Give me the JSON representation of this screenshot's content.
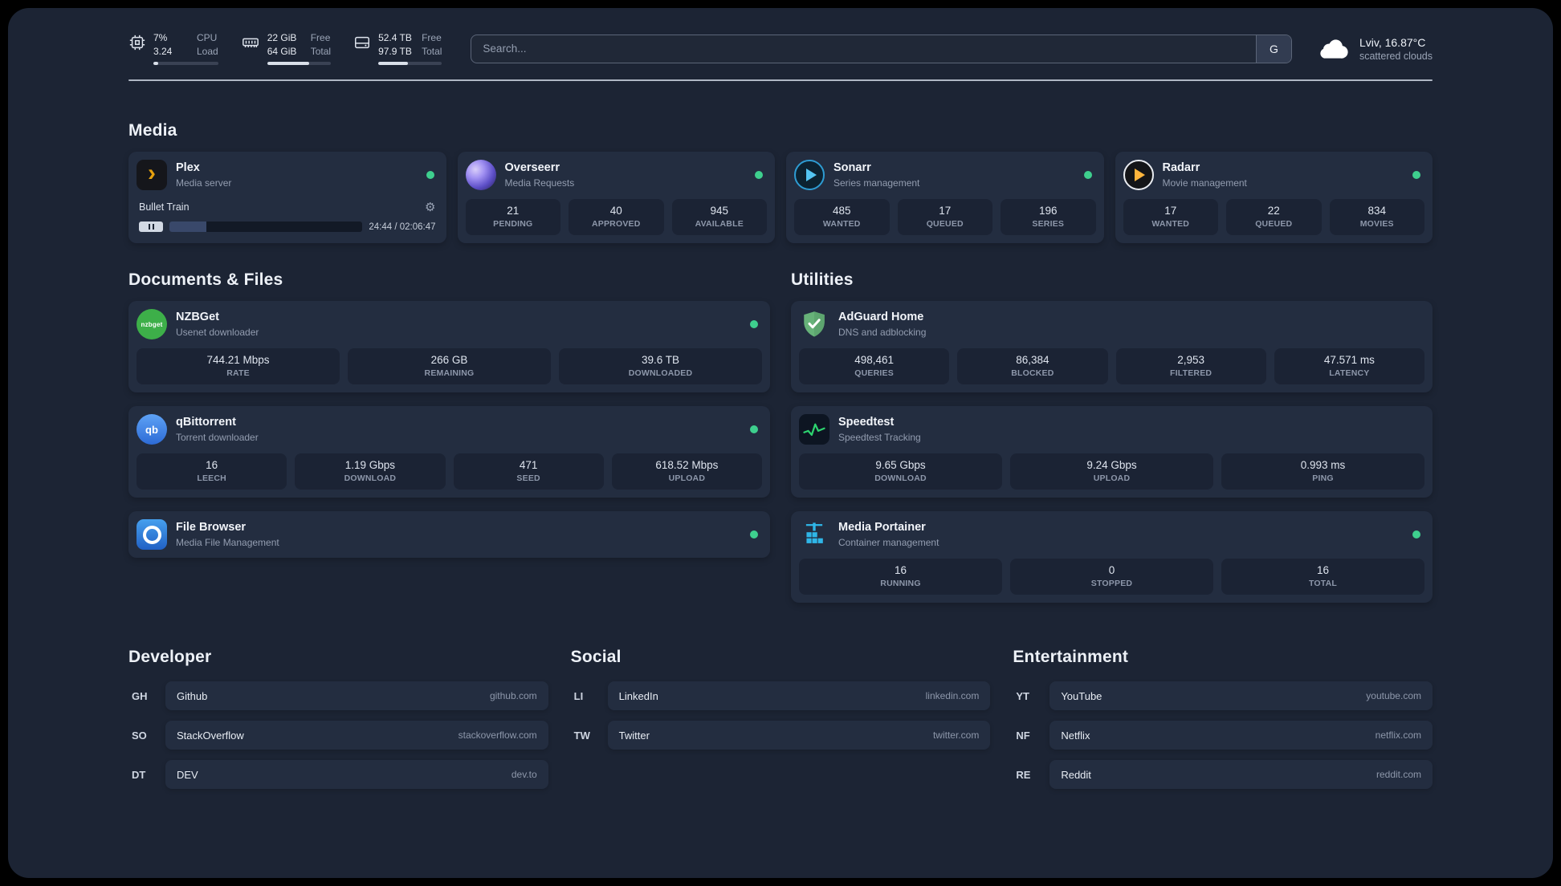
{
  "colors": {
    "background": "#1c2434",
    "card": "#232d40",
    "stat_block": "#1b2334",
    "online_dot": "#3ecf8e",
    "plex_accent": "#e5a00d",
    "adguard_green": "#67b279",
    "speedtest_green": "#2dd36f",
    "portainer_blue": "#2fb6e8"
  },
  "topbar": {
    "cpu": {
      "icon": "cpu-chip",
      "value": "7%",
      "load": "3.24",
      "label_value": "CPU",
      "label_load": "Load",
      "bar_percent": 7
    },
    "memory": {
      "icon": "memory-module",
      "free": "22 GiB",
      "total": "64 GiB",
      "label_free": "Free",
      "label_total": "Total",
      "bar_percent": 66
    },
    "disk": {
      "icon": "hard-disk",
      "free": "52.4 TB",
      "total": "97.9 TB",
      "label_free": "Free",
      "label_total": "Total",
      "bar_percent": 46
    },
    "search": {
      "placeholder": "Search...",
      "button_label": "G"
    },
    "weather": {
      "icon": "cloud",
      "location": "Lviv, 16.87°C",
      "condition": "scattered clouds"
    }
  },
  "media": {
    "title": "Media",
    "plex": {
      "icon": "plex-chevron",
      "name": "Plex",
      "subtitle": "Media server",
      "now_playing": "Bullet Train",
      "time": "24:44 / 02:06:47",
      "progress_percent": 19
    },
    "overseerr": {
      "icon": "overseerr-swirl",
      "name": "Overseerr",
      "subtitle": "Media Requests",
      "stats": [
        {
          "value": "21",
          "label": "PENDING"
        },
        {
          "value": "40",
          "label": "APPROVED"
        },
        {
          "value": "945",
          "label": "AVAILABLE"
        }
      ]
    },
    "sonarr": {
      "icon": "sonarr-arrow",
      "name": "Sonarr",
      "subtitle": "Series management",
      "stats": [
        {
          "value": "485",
          "label": "WANTED"
        },
        {
          "value": "17",
          "label": "QUEUED"
        },
        {
          "value": "196",
          "label": "SERIES"
        }
      ]
    },
    "radarr": {
      "icon": "radarr-arrow",
      "name": "Radarr",
      "subtitle": "Movie management",
      "stats": [
        {
          "value": "17",
          "label": "WANTED"
        },
        {
          "value": "22",
          "label": "QUEUED"
        },
        {
          "value": "834",
          "label": "MOVIES"
        }
      ]
    }
  },
  "documents": {
    "title": "Documents & Files",
    "nzbget": {
      "icon": "nzbget-logo",
      "name": "NZBGet",
      "subtitle": "Usenet downloader",
      "stats": [
        {
          "value": "744.21 Mbps",
          "label": "RATE"
        },
        {
          "value": "266 GB",
          "label": "REMAINING"
        },
        {
          "value": "39.6 TB",
          "label": "DOWNLOADED"
        }
      ]
    },
    "qbittorrent": {
      "icon": "qbittorrent-logo",
      "name": "qBittorrent",
      "subtitle": "Torrent downloader",
      "stats": [
        {
          "value": "16",
          "label": "LEECH"
        },
        {
          "value": "1.19 Gbps",
          "label": "DOWNLOAD"
        },
        {
          "value": "471",
          "label": "SEED"
        },
        {
          "value": "618.52 Mbps",
          "label": "UPLOAD"
        }
      ]
    },
    "filebrowser": {
      "icon": "filebrowser-logo",
      "name": "File Browser",
      "subtitle": "Media File Management"
    }
  },
  "utilities": {
    "title": "Utilities",
    "adguard": {
      "icon": "adguard-shield",
      "name": "AdGuard Home",
      "subtitle": "DNS and adblocking",
      "stats": [
        {
          "value": "498,461",
          "label": "QUERIES"
        },
        {
          "value": "86,384",
          "label": "BLOCKED"
        },
        {
          "value": "2,953",
          "label": "FILTERED"
        },
        {
          "value": "47.571 ms",
          "label": "LATENCY"
        }
      ]
    },
    "speedtest": {
      "icon": "speedtest-graph",
      "name": "Speedtest",
      "subtitle": "Speedtest Tracking",
      "stats": [
        {
          "value": "9.65 Gbps",
          "label": "DOWNLOAD"
        },
        {
          "value": "9.24 Gbps",
          "label": "UPLOAD"
        },
        {
          "value": "0.993 ms",
          "label": "PING"
        }
      ]
    },
    "portainer": {
      "icon": "portainer-crane",
      "name": "Media Portainer",
      "subtitle": "Container management",
      "stats": [
        {
          "value": "16",
          "label": "RUNNING"
        },
        {
          "value": "0",
          "label": "STOPPED"
        },
        {
          "value": "16",
          "label": "TOTAL"
        }
      ]
    }
  },
  "bookmarks": {
    "developer": {
      "title": "Developer",
      "items": [
        {
          "abbr": "GH",
          "name": "Github",
          "url": "github.com"
        },
        {
          "abbr": "SO",
          "name": "StackOverflow",
          "url": "stackoverflow.com"
        },
        {
          "abbr": "DT",
          "name": "DEV",
          "url": "dev.to"
        }
      ]
    },
    "social": {
      "title": "Social",
      "items": [
        {
          "abbr": "LI",
          "name": "LinkedIn",
          "url": "linkedin.com"
        },
        {
          "abbr": "TW",
          "name": "Twitter",
          "url": "twitter.com"
        }
      ]
    },
    "entertainment": {
      "title": "Entertainment",
      "items": [
        {
          "abbr": "YT",
          "name": "YouTube",
          "url": "youtube.com"
        },
        {
          "abbr": "NF",
          "name": "Netflix",
          "url": "netflix.com"
        },
        {
          "abbr": "RE",
          "name": "Reddit",
          "url": "reddit.com"
        }
      ]
    }
  }
}
